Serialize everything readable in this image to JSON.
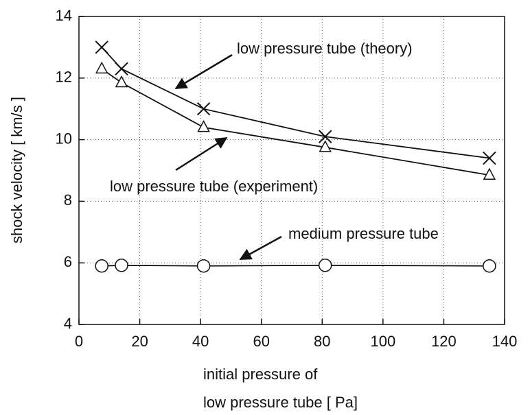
{
  "chart_data": {
    "type": "line",
    "xlabel": [
      "initial pressure of",
      "low pressure tube [ Pa]"
    ],
    "ylabel": "shock velocity [ km/s ]",
    "xlim": [
      0,
      140
    ],
    "xticks": [
      0,
      20,
      40,
      60,
      80,
      100,
      120,
      140
    ],
    "ylim": [
      4,
      14
    ],
    "yticks": [
      4,
      6,
      8,
      10,
      12,
      14
    ],
    "grid": true,
    "series": [
      {
        "name": "low pressure tube (theory)",
        "color": "#111111",
        "marker": "x",
        "x": [
          7.5,
          14,
          41,
          81,
          135
        ],
        "values": [
          13.0,
          12.3,
          11.0,
          10.1,
          9.4
        ]
      },
      {
        "name": "low pressure tube (experiment)",
        "color": "#111111",
        "marker": "triangle",
        "x": [
          7.5,
          14,
          41,
          81,
          135
        ],
        "values": [
          12.3,
          11.85,
          10.4,
          9.75,
          8.85
        ]
      },
      {
        "name": "medium pressure tube",
        "color": "#111111",
        "marker": "circle",
        "x": [
          7.5,
          14,
          41,
          81,
          135
        ],
        "values": [
          5.9,
          5.92,
          5.9,
          5.92,
          5.9
        ]
      }
    ]
  }
}
